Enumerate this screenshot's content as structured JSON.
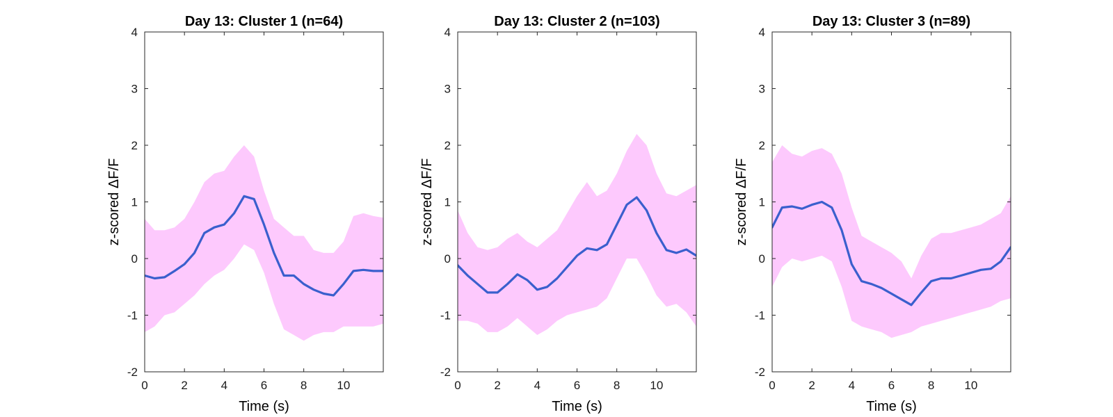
{
  "colors": {
    "mean_line": "#3a5fcd",
    "sem_band": "#fdc9fd",
    "axis": "#262626"
  },
  "chart_data": [
    {
      "type": "line",
      "title": "Day 13: Cluster 1 (n=64)",
      "xlabel": "Time (s)",
      "ylabel": "z-scored ΔF/F",
      "xlim": [
        0,
        12
      ],
      "ylim": [
        -2,
        4
      ],
      "xticks": [
        "0",
        "2",
        "4",
        "6",
        "8",
        "10"
      ],
      "yticks": [
        "-2",
        "-1",
        "0",
        "1",
        "2",
        "3",
        "4"
      ],
      "x": [
        0,
        0.5,
        1,
        1.5,
        2,
        2.5,
        3,
        3.5,
        4,
        4.5,
        5,
        5.5,
        6,
        6.5,
        7,
        7.5,
        8,
        8.5,
        9,
        9.5,
        10,
        10.5,
        11,
        11.5,
        12
      ],
      "mean": [
        -0.3,
        -0.35,
        -0.33,
        -0.22,
        -0.1,
        0.1,
        0.45,
        0.55,
        0.6,
        0.8,
        1.1,
        1.05,
        0.6,
        0.1,
        -0.3,
        -0.3,
        -0.45,
        -0.55,
        -0.62,
        -0.65,
        -0.45,
        -0.22,
        -0.2,
        -0.22,
        -0.22
      ],
      "upper": [
        0.7,
        0.5,
        0.5,
        0.55,
        0.7,
        1.0,
        1.35,
        1.5,
        1.55,
        1.8,
        2.0,
        1.8,
        1.2,
        0.7,
        0.55,
        0.4,
        0.4,
        0.15,
        0.1,
        0.1,
        0.3,
        0.75,
        0.8,
        0.75,
        0.72
      ],
      "lower": [
        -1.3,
        -1.2,
        -1.0,
        -0.95,
        -0.8,
        -0.65,
        -0.45,
        -0.3,
        -0.2,
        0.0,
        0.25,
        0.15,
        -0.25,
        -0.8,
        -1.25,
        -1.35,
        -1.45,
        -1.35,
        -1.3,
        -1.3,
        -1.2,
        -1.2,
        -1.2,
        -1.2,
        -1.15
      ]
    },
    {
      "type": "line",
      "title": "Day 13: Cluster 2 (n=103)",
      "xlabel": "Time (s)",
      "ylabel": "z-scored ΔF/F",
      "xlim": [
        0,
        12
      ],
      "ylim": [
        -2,
        4
      ],
      "xticks": [
        "0",
        "2",
        "4",
        "6",
        "8",
        "10"
      ],
      "yticks": [
        "-2",
        "-1",
        "0",
        "1",
        "2",
        "3",
        "4"
      ],
      "x": [
        0,
        0.5,
        1,
        1.5,
        2,
        2.5,
        3,
        3.5,
        4,
        4.5,
        5,
        5.5,
        6,
        6.5,
        7,
        7.5,
        8,
        8.5,
        9,
        9.5,
        10,
        10.5,
        11,
        11.5,
        12
      ],
      "mean": [
        -0.12,
        -0.3,
        -0.45,
        -0.6,
        -0.6,
        -0.45,
        -0.28,
        -0.38,
        -0.55,
        -0.5,
        -0.35,
        -0.15,
        0.05,
        0.18,
        0.15,
        0.25,
        0.6,
        0.95,
        1.08,
        0.85,
        0.45,
        0.15,
        0.1,
        0.16,
        0.05
      ],
      "upper": [
        0.85,
        0.45,
        0.2,
        0.15,
        0.2,
        0.35,
        0.45,
        0.3,
        0.2,
        0.35,
        0.5,
        0.8,
        1.1,
        1.35,
        1.1,
        1.2,
        1.5,
        1.9,
        2.2,
        2.0,
        1.5,
        1.15,
        1.1,
        1.2,
        1.3
      ],
      "lower": [
        -1.1,
        -1.1,
        -1.15,
        -1.3,
        -1.3,
        -1.2,
        -1.05,
        -1.2,
        -1.35,
        -1.25,
        -1.1,
        -1.0,
        -0.95,
        -0.9,
        -0.85,
        -0.7,
        -0.35,
        0.0,
        0.0,
        -0.3,
        -0.65,
        -0.85,
        -0.8,
        -0.95,
        -1.2
      ]
    },
    {
      "type": "line",
      "title": "Day 13: Cluster 3 (n=89)",
      "xlabel": "Time (s)",
      "ylabel": "z-scored ΔF/F",
      "xlim": [
        0,
        12
      ],
      "ylim": [
        -2,
        4
      ],
      "xticks": [
        "0",
        "2",
        "4",
        "6",
        "8",
        "10"
      ],
      "yticks": [
        "-2",
        "-1",
        "0",
        "1",
        "2",
        "3",
        "4"
      ],
      "x": [
        0,
        0.5,
        1,
        1.5,
        2,
        2.5,
        3,
        3.5,
        4,
        4.5,
        5,
        5.5,
        6,
        6.5,
        7,
        7.5,
        8,
        8.5,
        9,
        9.5,
        10,
        10.5,
        11,
        11.5,
        12
      ],
      "mean": [
        0.55,
        0.9,
        0.92,
        0.88,
        0.95,
        1.0,
        0.9,
        0.5,
        -0.1,
        -0.4,
        -0.45,
        -0.52,
        -0.62,
        -0.72,
        -0.82,
        -0.6,
        -0.4,
        -0.35,
        -0.35,
        -0.3,
        -0.25,
        -0.2,
        -0.18,
        -0.05,
        0.2
      ],
      "upper": [
        1.7,
        2.0,
        1.85,
        1.8,
        1.9,
        1.95,
        1.85,
        1.5,
        0.9,
        0.4,
        0.3,
        0.2,
        0.1,
        -0.05,
        -0.35,
        0.05,
        0.35,
        0.45,
        0.45,
        0.5,
        0.55,
        0.6,
        0.7,
        0.8,
        1.1
      ],
      "lower": [
        -0.5,
        -0.15,
        0.0,
        -0.05,
        0.0,
        0.05,
        -0.05,
        -0.5,
        -1.1,
        -1.2,
        -1.25,
        -1.3,
        -1.4,
        -1.35,
        -1.3,
        -1.2,
        -1.15,
        -1.1,
        -1.05,
        -1.0,
        -0.95,
        -0.9,
        -0.85,
        -0.75,
        -0.7
      ]
    }
  ]
}
